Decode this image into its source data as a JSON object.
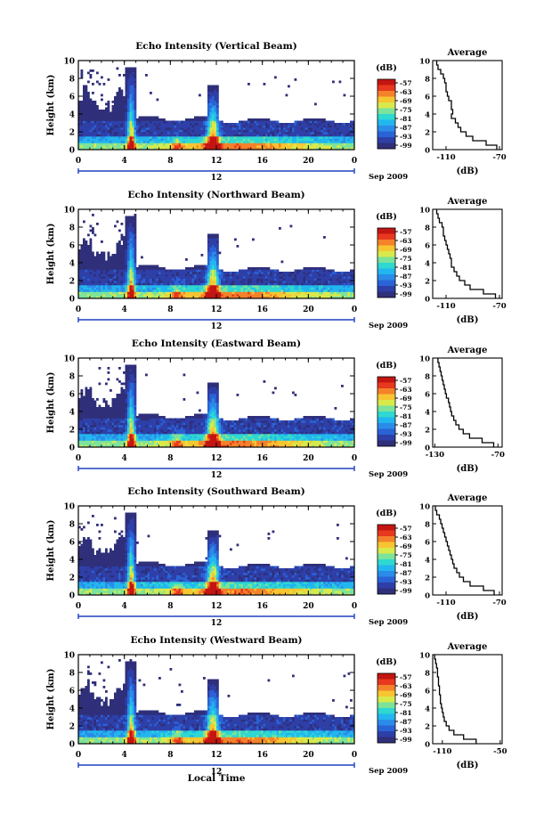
{
  "x_axis_label": "Local Time",
  "colors": {
    "scale": [
      "#2f2f7a",
      "#2e3fa8",
      "#2a63d6",
      "#2a8ce8",
      "#22b6ee",
      "#2fd8d0",
      "#7be39a",
      "#d8e94c",
      "#f7c531",
      "#f4822a",
      "#e8381e",
      "#c31612"
    ],
    "missing": "#ffffff"
  },
  "colorbar": {
    "unit_label": "(dB)",
    "ticks": [
      "-57",
      "-63",
      "-69",
      "-75",
      "-81",
      "-87",
      "-93",
      "-99"
    ]
  },
  "chart_data": [
    {
      "type": "heatmap",
      "title": "Echo Intensity (Vertical Beam)",
      "ylabel": "Height (km)",
      "ylim": [
        0,
        10
      ],
      "y_ticks": [
        "0",
        "2",
        "4",
        "6",
        "8",
        "10"
      ],
      "xlim": [
        0,
        24
      ],
      "x_ticks": [
        "0",
        "4",
        "8",
        "12",
        "16",
        "20",
        "0"
      ],
      "date_marker": "12",
      "date_label": "Sep 2009",
      "average": {
        "title": "Average",
        "xlabel": "(dB)",
        "x_ticks": [
          "-110",
          "-70"
        ],
        "xlim": [
          -120,
          -68
        ],
        "height_km": [
          0,
          0.5,
          1,
          1.5,
          2,
          2.5,
          3,
          3.5,
          4,
          4.5,
          5,
          5.5,
          6,
          6.5,
          7,
          7.5,
          8,
          8.5,
          9,
          9.5
        ],
        "db": [
          -72,
          -80,
          -90,
          -95,
          -99,
          -101,
          -103,
          -106,
          -105,
          -106,
          -106,
          -108,
          -109,
          -110,
          -110,
          -111,
          -112,
          -114,
          -116,
          -117
        ]
      }
    },
    {
      "type": "heatmap",
      "title": "Echo Intensity (Northward Beam)",
      "ylabel": "Height (km)",
      "ylim": [
        0,
        10
      ],
      "y_ticks": [
        "0",
        "2",
        "4",
        "6",
        "8",
        "10"
      ],
      "xlim": [
        0,
        24
      ],
      "x_ticks": [
        "0",
        "4",
        "8",
        "12",
        "16",
        "20",
        "0"
      ],
      "date_marker": "12",
      "date_label": "Sep 2009",
      "average": {
        "title": "Average",
        "xlabel": "(dB)",
        "x_ticks": [
          "-110",
          "-70"
        ],
        "xlim": [
          -120,
          -68
        ],
        "height_km": [
          0,
          0.5,
          1,
          1.5,
          2,
          2.5,
          3,
          3.5,
          4,
          4.5,
          5,
          5.5,
          6,
          6.5,
          7,
          7.5,
          8,
          8.5,
          9,
          9.5
        ],
        "db": [
          -73,
          -82,
          -92,
          -96,
          -100,
          -102,
          -104,
          -106,
          -106,
          -107,
          -108,
          -109,
          -110,
          -111,
          -112,
          -112,
          -113,
          -115,
          -116,
          -117
        ]
      }
    },
    {
      "type": "heatmap",
      "title": "Echo Intensity (Eastward Beam)",
      "ylabel": "Height (km)",
      "ylim": [
        0,
        10
      ],
      "y_ticks": [
        "0",
        "2",
        "4",
        "6",
        "8",
        "10"
      ],
      "xlim": [
        0,
        24
      ],
      "x_ticks": [
        "0",
        "4",
        "8",
        "12",
        "16",
        "20",
        "0"
      ],
      "date_marker": "12",
      "date_label": "Sep 2009",
      "average": {
        "title": "Average",
        "xlabel": "(dB)",
        "x_ticks": [
          "-130",
          "-70"
        ],
        "xlim": [
          -132,
          -66
        ],
        "height_km": [
          0,
          0.5,
          1,
          1.5,
          2,
          2.5,
          3,
          3.5,
          4,
          4.5,
          5,
          5.5,
          6,
          6.5,
          7,
          7.5,
          8,
          8.5,
          9,
          9.5
        ],
        "db": [
          -74,
          -85,
          -97,
          -103,
          -107,
          -110,
          -112,
          -114,
          -115,
          -116,
          -117,
          -119,
          -120,
          -121,
          -122,
          -123,
          -124,
          -125,
          -126,
          -127
        ]
      }
    },
    {
      "type": "heatmap",
      "title": "Echo Intensity (Southward Beam)",
      "ylabel": "Height (km)",
      "ylim": [
        0,
        10
      ],
      "y_ticks": [
        "0",
        "2",
        "4",
        "6",
        "8",
        "10"
      ],
      "xlim": [
        0,
        24
      ],
      "x_ticks": [
        "0",
        "4",
        "8",
        "12",
        "16",
        "20",
        "0"
      ],
      "date_marker": "12",
      "date_label": "Sep 2009",
      "average": {
        "title": "Average",
        "xlabel": "(dB)",
        "x_ticks": [
          "-110",
          "-70"
        ],
        "xlim": [
          -120,
          -68
        ],
        "height_km": [
          0,
          0.5,
          1,
          1.5,
          2,
          2.5,
          3,
          3.5,
          4,
          4.5,
          5,
          5.5,
          6,
          6.5,
          7,
          7.5,
          8,
          8.5,
          9,
          9.5
        ],
        "db": [
          -74,
          -82,
          -92,
          -97,
          -100,
          -102,
          -104,
          -105,
          -106,
          -107,
          -108,
          -109,
          -110,
          -111,
          -112,
          -113,
          -114,
          -115,
          -117,
          -118
        ]
      }
    },
    {
      "type": "heatmap",
      "title": "Echo Intensity (Westward Beam)",
      "ylabel": "Height (km)",
      "ylim": [
        0,
        10
      ],
      "y_ticks": [
        "0",
        "2",
        "4",
        "6",
        "8",
        "10"
      ],
      "xlim": [
        0,
        24
      ],
      "x_ticks": [
        "0",
        "4",
        "8",
        "12",
        "16",
        "20",
        "0"
      ],
      "date_marker": "12",
      "date_label": "Sep 2009",
      "average": {
        "title": "Average",
        "xlabel": "(dB)",
        "x_ticks": [
          "-110",
          "-50"
        ],
        "xlim": [
          -120,
          -48
        ],
        "height_km": [
          0,
          0.5,
          1,
          1.5,
          2,
          2.5,
          3,
          3.5,
          4,
          4.5,
          5,
          5.5,
          6,
          6.5,
          7,
          7.5,
          8,
          8.5,
          9,
          9.5
        ],
        "db": [
          -75,
          -88,
          -98,
          -103,
          -106,
          -108,
          -109,
          -110,
          -111,
          -112,
          -112,
          -113,
          -113,
          -114,
          -114,
          -115,
          -115,
          -116,
          -117,
          -118
        ]
      }
    }
  ]
}
